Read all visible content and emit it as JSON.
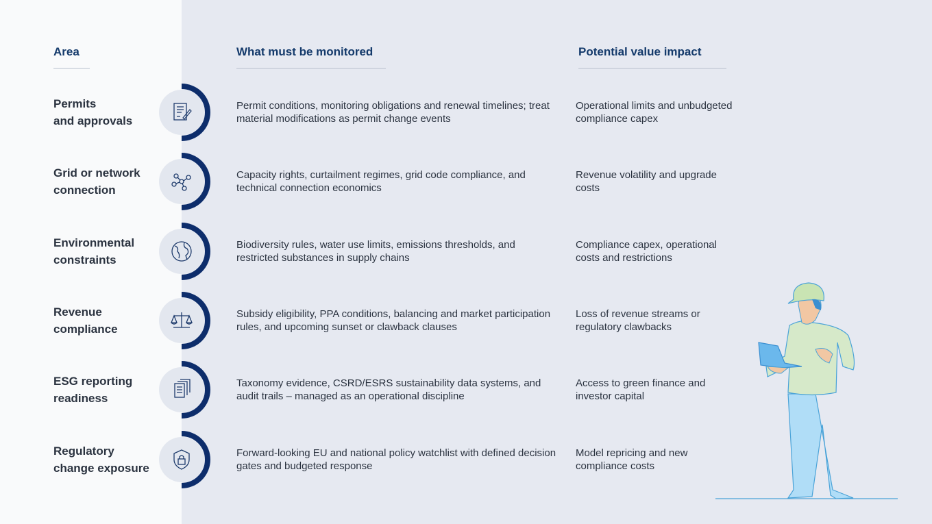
{
  "headers": {
    "area": "Area",
    "monitored": "What must be monitored",
    "impact": "Potential value impact"
  },
  "colors": {
    "accent": "#0d2d6b",
    "header": "#143a6b",
    "circle": "#e3e7ef"
  },
  "rows": [
    {
      "area_line1": "Permits",
      "area_line2": "and approvals",
      "icon": "document-signature-icon",
      "monitored": "Permit conditions, monitoring obligations and renewal timelines; treat material modifications as permit change events",
      "impact": "Operational limits and unbudgeted compliance capex"
    },
    {
      "area_line1": "Grid or network",
      "area_line2": "connection",
      "icon": "network-nodes-icon",
      "monitored": "Capacity rights, curtailment regimes, grid code compliance, and technical connection economics",
      "impact": "Revenue volatility and upgrade costs"
    },
    {
      "area_line1": "Environmental",
      "area_line2": "constraints",
      "icon": "globe-icon",
      "monitored": "Biodiversity rules, water use limits, emissions thresholds, and restricted substances in supply chains",
      "impact": "Compliance capex, operational costs and restrictions"
    },
    {
      "area_line1": "Revenue",
      "area_line2": "compliance",
      "icon": "scales-icon",
      "monitored": "Subsidy eligibility, PPA conditions, balancing and market participation rules, and upcoming sunset or clawback clauses",
      "impact": "Loss of revenue streams or regulatory clawbacks"
    },
    {
      "area_line1": "ESG reporting",
      "area_line2": "readiness",
      "icon": "documents-stack-icon",
      "monitored": "Taxonomy evidence, CSRD/ESRS sustainability data systems, and audit trails – managed as an operational discipline",
      "impact": "Access to green finance and investor capital"
    },
    {
      "area_line1": "Regulatory",
      "area_line2": "change exposure",
      "icon": "shield-lock-icon",
      "monitored": "Forward-looking EU and national policy watchlist with defined decision gates and budgeted response",
      "impact": "Model repricing and new compliance costs"
    }
  ]
}
